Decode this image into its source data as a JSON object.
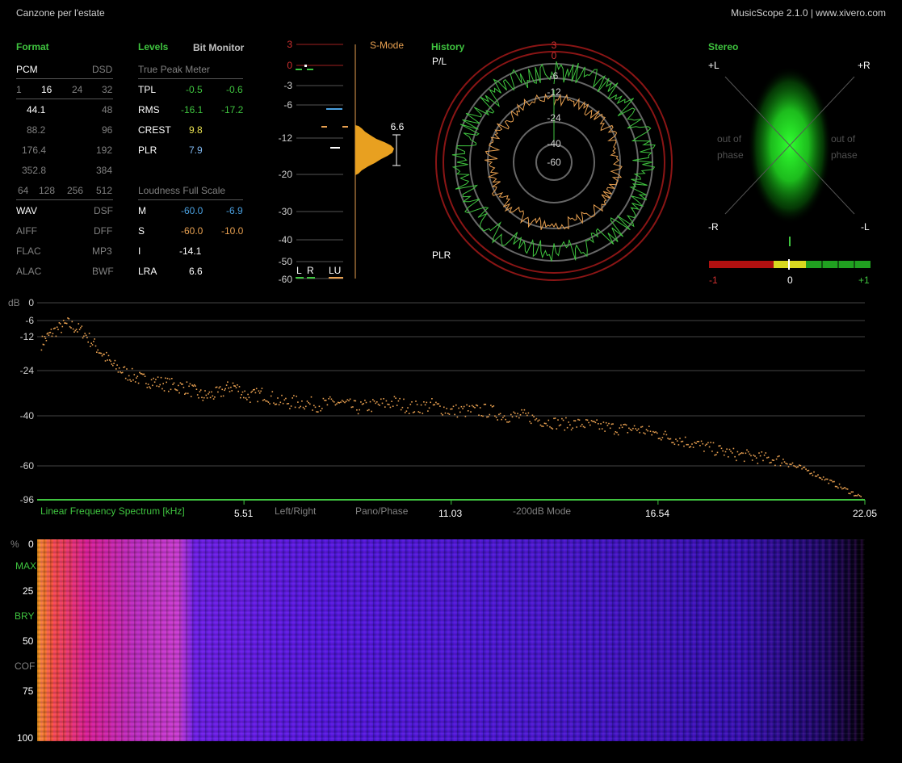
{
  "window": {
    "title": "Canzone per l'estate",
    "app": "MusicScope 2.1.0 | www.xivero.com"
  },
  "format": {
    "title": "Format",
    "pcm": "PCM",
    "dsd": "DSD",
    "bits": [
      "1",
      "16",
      "24",
      "32"
    ],
    "rates": [
      [
        "44.1",
        "48"
      ],
      [
        "88.2",
        "96"
      ],
      [
        "176.4",
        "192"
      ],
      [
        "352.8",
        "384"
      ]
    ],
    "dsd_rates": [
      "64",
      "128",
      "256",
      "512"
    ],
    "containers": [
      [
        "WAV",
        "DSF"
      ],
      [
        "AIFF",
        "DFF"
      ],
      [
        "FLAC",
        "MP3"
      ],
      [
        "ALAC",
        "BWF"
      ]
    ]
  },
  "levels": {
    "title": "Levels",
    "bit_monitor": "Bit Monitor",
    "tpm_title": "True Peak Meter",
    "rows": [
      {
        "label": "TPL",
        "l": "-0.5",
        "r": "-0.6"
      },
      {
        "label": "RMS",
        "l": "-16.1",
        "r": "-17.2"
      },
      {
        "label": "CREST",
        "v": "9.8"
      },
      {
        "label": "PLR",
        "v": "7.9"
      }
    ],
    "lfs_title": "Loudness Full Scale",
    "lfs_rows": [
      {
        "label": "M",
        "l": "-60.0",
        "r": "-6.9"
      },
      {
        "label": "S",
        "l": "-60.0",
        "r": "-10.0"
      },
      {
        "label": "I",
        "v": "-14.1"
      },
      {
        "label": "LRA",
        "v": "6.6"
      }
    ]
  },
  "meter": {
    "mode": "S-Mode",
    "ticks": [
      "3",
      "0",
      "-3",
      "-6",
      "-12",
      "-20",
      "-30",
      "-40",
      "-50",
      "-60"
    ],
    "lra_value": "6.6",
    "legend": [
      "L",
      "R",
      "LU"
    ]
  },
  "history": {
    "title": "History",
    "top_label": "P/L",
    "bottom_label": "PLR",
    "rings": [
      "3",
      "0",
      "-6",
      "-12",
      "-24",
      "-40",
      "-60"
    ]
  },
  "stereo": {
    "title": "Stereo",
    "corners": [
      "+L",
      "+R",
      "-R",
      "-L"
    ],
    "out_of_phase": "out of phase",
    "corr_scale": [
      "-1",
      "0",
      "+1"
    ]
  },
  "spectrum": {
    "unit": "dB",
    "y_ticks": [
      "0",
      "-6",
      "-12",
      "-24",
      "-40",
      "-60",
      "-96"
    ],
    "x_ticks": [
      "5.51",
      "11.03",
      "16.54",
      "22.05"
    ],
    "label": "Linear Frequency Spectrum [kHz]",
    "options": [
      "Left/Right",
      "Pano/Phase",
      "-200dB Mode"
    ]
  },
  "spectrogram": {
    "unit": "%",
    "y_ticks": [
      "0",
      "25",
      "50",
      "75",
      "100"
    ],
    "markers": [
      "MAX",
      "BRY",
      "COF"
    ]
  },
  "chart_data": {
    "type": "scatter",
    "xlabel": "Linear Frequency Spectrum [kHz]",
    "ylabel": "dB",
    "xlim": [
      0,
      22.05
    ],
    "y_ticks": [
      0,
      -6,
      -12,
      -24,
      -40,
      -60,
      -96
    ],
    "points": [
      [
        0.1,
        -14
      ],
      [
        0.4,
        -10
      ],
      [
        0.8,
        -7
      ],
      [
        1.2,
        -10
      ],
      [
        1.6,
        -16
      ],
      [
        2.0,
        -22
      ],
      [
        2.4,
        -25
      ],
      [
        2.8,
        -27
      ],
      [
        3.2,
        -28
      ],
      [
        3.6,
        -29
      ],
      [
        4.0,
        -30
      ],
      [
        4.4,
        -33
      ],
      [
        4.8,
        -32
      ],
      [
        5.2,
        -29
      ],
      [
        5.6,
        -33
      ],
      [
        6.0,
        -32
      ],
      [
        6.5,
        -35
      ],
      [
        7.0,
        -35
      ],
      [
        7.5,
        -36
      ],
      [
        8.0,
        -35
      ],
      [
        8.5,
        -37
      ],
      [
        9.0,
        -36
      ],
      [
        9.5,
        -35
      ],
      [
        10.0,
        -37
      ],
      [
        10.5,
        -36
      ],
      [
        11.0,
        -38
      ],
      [
        11.5,
        -38
      ],
      [
        12.0,
        -38
      ],
      [
        12.5,
        -40
      ],
      [
        13.0,
        -40
      ],
      [
        13.5,
        -42
      ],
      [
        14.0,
        -43
      ],
      [
        14.5,
        -43
      ],
      [
        15.0,
        -44
      ],
      [
        15.5,
        -45
      ],
      [
        16.0,
        -45
      ],
      [
        16.5,
        -47
      ],
      [
        17.0,
        -49
      ],
      [
        17.5,
        -51
      ],
      [
        18.0,
        -53
      ],
      [
        18.5,
        -55
      ],
      [
        19.0,
        -56
      ],
      [
        19.5,
        -57
      ],
      [
        20.0,
        -58
      ],
      [
        20.5,
        -64
      ],
      [
        21.0,
        -74
      ],
      [
        21.5,
        -84
      ],
      [
        22.0,
        -94
      ]
    ]
  }
}
